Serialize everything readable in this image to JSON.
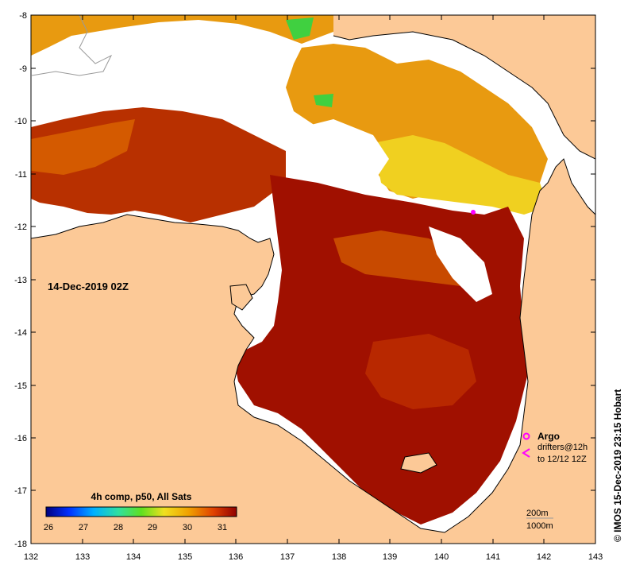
{
  "map": {
    "date_label": "14-Dec-2019 02Z",
    "copyright": "© IMOS 15-Dec-2019 23:15 Hobart",
    "x_ticks": [
      "132",
      "133",
      "134",
      "135",
      "136",
      "137",
      "138",
      "139",
      "140",
      "141",
      "142",
      "143"
    ],
    "y_ticks": [
      "-8",
      "-9",
      "-10",
      "-11",
      "-12",
      "-13",
      "-14",
      "-15",
      "-16",
      "-17",
      "-18"
    ],
    "lon_range": [
      132,
      143
    ],
    "lat_range": [
      -18,
      -8
    ],
    "colors": {
      "land": "#fcc997",
      "cloud": "#ffffff",
      "sst_hot": "#a01000",
      "sst_warm": "#d45a00",
      "sst_mid": "#e89a10",
      "sst_cool": "#f0d020",
      "sst_cooler": "#40d040"
    }
  },
  "colorbar": {
    "title": "4h comp, p50, All Sats",
    "ticks": [
      "26",
      "27",
      "28",
      "29",
      "30",
      "31"
    ],
    "range": [
      26,
      31.5
    ]
  },
  "legend": {
    "argo_label": "Argo",
    "argo_color": "#ff00ff",
    "drifters_line1": "drifters@12h",
    "drifters_line2": "to 12/12 12Z",
    "drifter_color": "#ff00ff",
    "depth_200": "200m",
    "depth_1000": "1000m"
  }
}
